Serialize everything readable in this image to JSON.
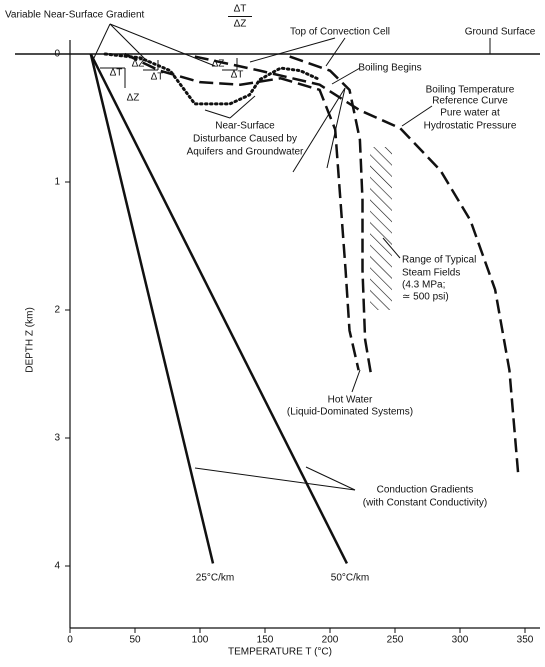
{
  "chart_data": {
    "type": "line",
    "xlabel": "TEMPERATURE T (°C)",
    "ylabel": "DEPTH Z (km)",
    "xlim": [
      0,
      350
    ],
    "xticks": [
      0,
      50,
      100,
      150,
      200,
      250,
      300,
      350
    ],
    "ylim": [
      0,
      4.5
    ],
    "yticks": [
      0,
      1,
      2,
      3,
      4
    ],
    "y_inverted": true,
    "series": [
      {
        "style": "solid",
        "color": "#111111",
        "x": [
          16,
          110
        ],
        "values": [
          0,
          3.98
        ]
      },
      {
        "style": "solid",
        "color": "#111111",
        "x": [
          16,
          213
        ],
        "values": [
          0,
          3.98
        ]
      },
      {
        "style": "dashed",
        "color": "#111111",
        "x": [
          96,
          146,
          192,
          223,
          254,
          285,
          308,
          327,
          338,
          345
        ],
        "values": [
          0.02,
          0.13,
          0.24,
          0.44,
          0.58,
          0.91,
          1.3,
          1.84,
          2.47,
          3.31
        ]
      },
      {
        "style": "dashed",
        "color": "#111111",
        "x": [
          42,
          69,
          100,
          131,
          162,
          192,
          204,
          208,
          212,
          215,
          222
        ],
        "values": [
          0,
          0.13,
          0.22,
          0.24,
          0.19,
          0.28,
          0.59,
          1.14,
          1.69,
          2.16,
          2.47
        ]
      },
      {
        "style": "dashed",
        "color": "#111111",
        "x": [
          169,
          200,
          215,
          223,
          225,
          225,
          227,
          232
        ],
        "values": [
          0.02,
          0.13,
          0.28,
          0.67,
          1.14,
          1.69,
          2.23,
          2.53
        ]
      },
      {
        "style": "dotted",
        "color": "#111111",
        "x": [
          27,
          54,
          77,
          88,
          96,
          123,
          138,
          146,
          162,
          177,
          192
        ],
        "values": [
          0,
          0.03,
          0.13,
          0.28,
          0.39,
          0.39,
          0.32,
          0.2,
          0.11,
          0.13,
          0.2
        ]
      }
    ],
    "annotations": [
      "Variable Near-Surface Gradient",
      "ΔT",
      "ΔZ",
      "Top of Convection Cell",
      "Ground Surface",
      "Boiling Begins",
      "Boiling Temperature",
      "Reference Curve",
      "Pure water at",
      "Hydrostatic Pressure",
      "Near-Surface",
      "Disturbance Caused by",
      "Aquifers and Groundwater",
      "Range of Typical",
      "Steam Fields",
      "(4.3 MPa;",
      "≃ 500 psi)",
      "Hot Water",
      "(Liquid-Dominated Systems)",
      "Conduction Gradients",
      "(with Constant Conductivity)",
      "25°C/km",
      "50°C/km",
      "ΔT",
      "ΔZ",
      "ΔZ",
      "ΔT",
      "ΔZ",
      "ΔT"
    ]
  }
}
